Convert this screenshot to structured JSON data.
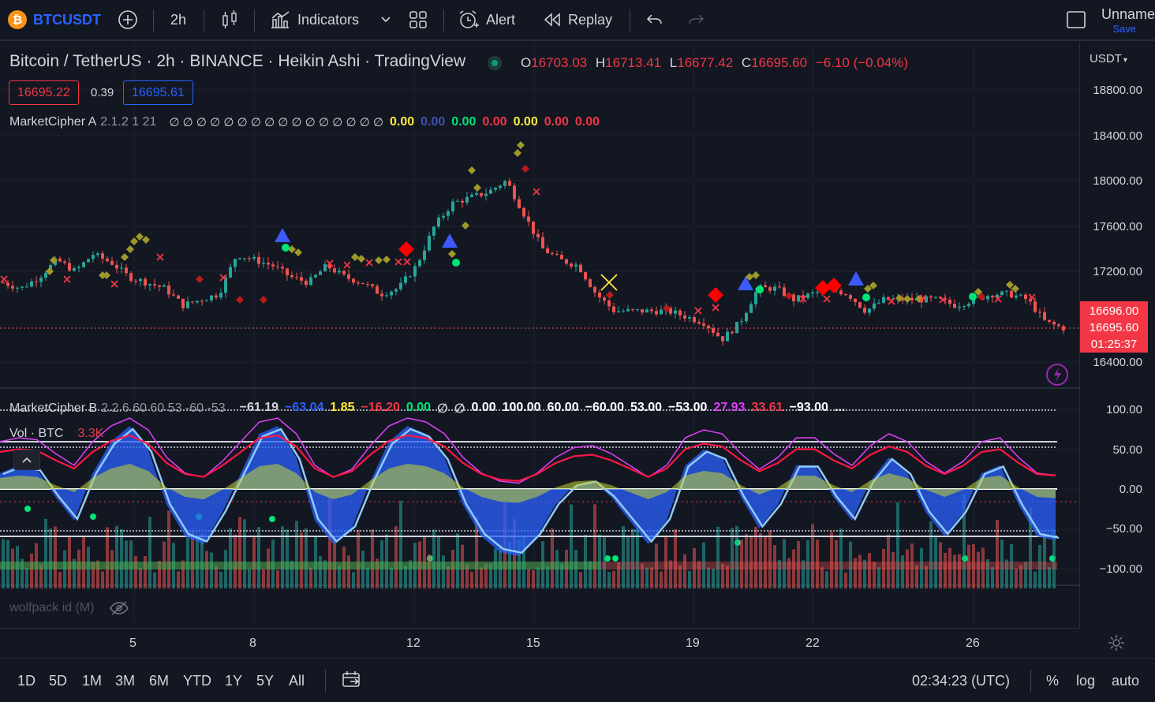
{
  "toolbar": {
    "symbol": "BTCUSDT",
    "interval": "2h",
    "indicators_label": "Indicators",
    "alert_label": "Alert",
    "replay_label": "Replay",
    "layout_name": "Unname",
    "save_label": "Save"
  },
  "legend": {
    "title": "Bitcoin / TetherUS · 2h · BINANCE · Heikin Ashi · TradingView",
    "o_label": "O",
    "o_value": "16703.03",
    "h_label": "H",
    "h_value": "16713.41",
    "l_label": "L",
    "l_value": "16677.42",
    "c_label": "C",
    "c_value": "16695.60",
    "change": "−6.10 (−0.04%)",
    "bid": "16695.22",
    "spread": "0.39",
    "ask": "16695.61"
  },
  "indicator_a": {
    "name": "MarketCipher A",
    "params": "2.1.2 1 21",
    "empties": "∅ ∅ ∅ ∅ ∅ ∅ ∅ ∅ ∅ ∅ ∅ ∅ ∅ ∅ ∅ ∅",
    "values": [
      {
        "text": "0.00",
        "color": "#ffeb3b"
      },
      {
        "text": "0.00",
        "color": "#3f51b5"
      },
      {
        "text": "0.00",
        "color": "#00e676"
      },
      {
        "text": "0.00",
        "color": "#f23645"
      },
      {
        "text": "0.00",
        "color": "#ffeb3b"
      },
      {
        "text": "0.00",
        "color": "#f23645"
      },
      {
        "text": "0.00",
        "color": "#f23645"
      }
    ]
  },
  "indicator_b": {
    "name": "MarketCipher B",
    "params": "2.2.6 60 60 53 -60 -53",
    "values": [
      {
        "text": "−61.19",
        "color": "#d1d4dc"
      },
      {
        "text": "−63.04",
        "color": "#2962ff"
      },
      {
        "text": "1.85",
        "color": "#ffeb3b"
      },
      {
        "text": "−16.20",
        "color": "#f23645"
      },
      {
        "text": "0.00",
        "color": "#00e676"
      },
      {
        "text": "∅",
        "color": "#d1d4dc"
      },
      {
        "text": "∅",
        "color": "#d1d4dc"
      },
      {
        "text": "0.00",
        "color": "#ffffff"
      },
      {
        "text": "100.00",
        "color": "#ffffff"
      },
      {
        "text": "60.00",
        "color": "#ffffff"
      },
      {
        "text": "−60.00",
        "color": "#ffffff"
      },
      {
        "text": "53.00",
        "color": "#ffffff"
      },
      {
        "text": "−53.00",
        "color": "#ffffff"
      },
      {
        "text": "27.93",
        "color": "#e040fb"
      },
      {
        "text": "33.61",
        "color": "#f23645"
      },
      {
        "text": "−93.00",
        "color": "#ffffff"
      },
      {
        "text": "...",
        "color": "#ffffff"
      }
    ]
  },
  "volume": {
    "name": "Vol · BTC",
    "value": "3.3K"
  },
  "wolfpack": {
    "name": "wolfpack id (M)"
  },
  "price_axis": {
    "currency": "USDT",
    "labels": [
      "18800.00",
      "18400.00",
      "18000.00",
      "17600.00",
      "17200.00",
      "16400.00"
    ],
    "last_price": "16696.00",
    "last_close": "16695.60",
    "countdown": "01:25:37"
  },
  "osc_axis": {
    "labels": [
      "100.00",
      "50.00",
      "0.00",
      "−50.00",
      "−100.00"
    ]
  },
  "time_axis": {
    "labels": [
      "5",
      "8",
      "12",
      "15",
      "19",
      "22",
      "26"
    ]
  },
  "bottom": {
    "ranges": [
      "1D",
      "5D",
      "1M",
      "3M",
      "6M",
      "YTD",
      "1Y",
      "5Y",
      "All"
    ],
    "clock": "02:34:23 (UTC)",
    "pct_label": "%",
    "log_label": "log",
    "auto_label": "auto"
  },
  "colors": {
    "up": "#26a69a",
    "down": "#ef5350",
    "bg": "#131722",
    "blue_wave": "#2962ff",
    "bid_border": "#f23645",
    "ask_border": "#2962ff"
  },
  "chart_data": {
    "type": "candlestick",
    "price_close_path": [
      17100,
      17050,
      17150,
      17300,
      17200,
      17350,
      17280,
      17150,
      17100,
      17050,
      16900,
      16950,
      17000,
      17350,
      17300,
      17250,
      17150,
      17100,
      17250,
      17150,
      17100,
      17000,
      17050,
      17250,
      17600,
      17800,
      17850,
      17900,
      18000,
      17700,
      17400,
      17300,
      17250,
      17000,
      16850,
      16850,
      16850,
      16850,
      16800,
      16750,
      16600,
      16750,
      17050,
      17050,
      16950,
      17000,
      17050,
      17000,
      16850,
      16950,
      16950,
      16950,
      16950,
      16900,
      16950,
      17000,
      17000,
      16950,
      16750,
      16700
    ],
    "oscillator_wave": [
      20,
      30,
      25,
      -10,
      -40,
      20,
      60,
      80,
      50,
      -20,
      -60,
      -70,
      -30,
      20,
      70,
      80,
      40,
      -40,
      -70,
      -50,
      10,
      60,
      80,
      70,
      40,
      -20,
      -60,
      -80,
      -85,
      -60,
      -20,
      5,
      10,
      -10,
      -40,
      -70,
      -40,
      30,
      50,
      40,
      -10,
      -50,
      -20,
      30,
      30,
      -10,
      -40,
      10,
      40,
      20,
      -30,
      -60,
      -30,
      20,
      30,
      -20,
      -60,
      -65
    ]
  }
}
